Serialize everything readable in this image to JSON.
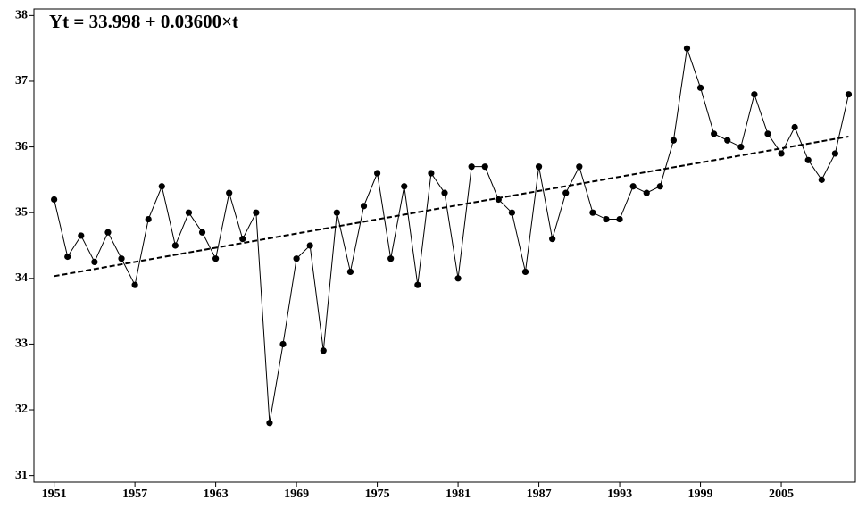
{
  "chart_data": {
    "type": "line",
    "annotation": "Yt = 33.998 + 0.03600×t",
    "x": [
      1951,
      1952,
      1953,
      1954,
      1955,
      1956,
      1957,
      1958,
      1959,
      1960,
      1961,
      1962,
      1963,
      1964,
      1965,
      1966,
      1967,
      1968,
      1969,
      1970,
      1971,
      1972,
      1973,
      1974,
      1975,
      1976,
      1977,
      1978,
      1979,
      1980,
      1981,
      1982,
      1983,
      1984,
      1985,
      1986,
      1987,
      1988,
      1989,
      1990,
      1991,
      1992,
      1993,
      1994,
      1995,
      1996,
      1997,
      1998,
      1999,
      2000,
      2001,
      2002,
      2003,
      2004,
      2005,
      2006,
      2007,
      2008,
      2009,
      2010
    ],
    "series": [
      {
        "color": "#000000",
        "style": "solid",
        "markers": true,
        "values": [
          35.2,
          34.33,
          34.65,
          34.25,
          34.7,
          34.3,
          33.9,
          34.9,
          35.4,
          34.5,
          35.0,
          34.7,
          34.3,
          35.3,
          34.6,
          35.0,
          31.8,
          33.0,
          34.3,
          34.5,
          32.9,
          35.0,
          34.1,
          35.1,
          35.6,
          34.3,
          35.4,
          33.9,
          35.6,
          35.3,
          34.0,
          35.7,
          35.7,
          35.2,
          35.0,
          34.1,
          35.7,
          34.6,
          35.3,
          35.7,
          35.0,
          34.9,
          34.9,
          35.4,
          35.3,
          35.4,
          36.1,
          37.5,
          36.9,
          36.2,
          36.1,
          36.0,
          36.8,
          36.2,
          35.9,
          36.3,
          35.8,
          35.5,
          35.9,
          36.8
        ]
      },
      {
        "color": "#000000",
        "style": "dashed",
        "markers": false,
        "x": [
          1951,
          2010
        ],
        "values": [
          34.034,
          36.158
        ]
      }
    ],
    "xlim": [
      1949.5,
      2010.5
    ],
    "ylim": [
      30.9,
      38.1
    ],
    "xticks": [
      1951,
      1957,
      1963,
      1969,
      1975,
      1981,
      1987,
      1993,
      1999,
      2005
    ],
    "yticks": [
      31,
      32,
      33,
      34,
      35,
      36,
      37,
      38
    ]
  }
}
